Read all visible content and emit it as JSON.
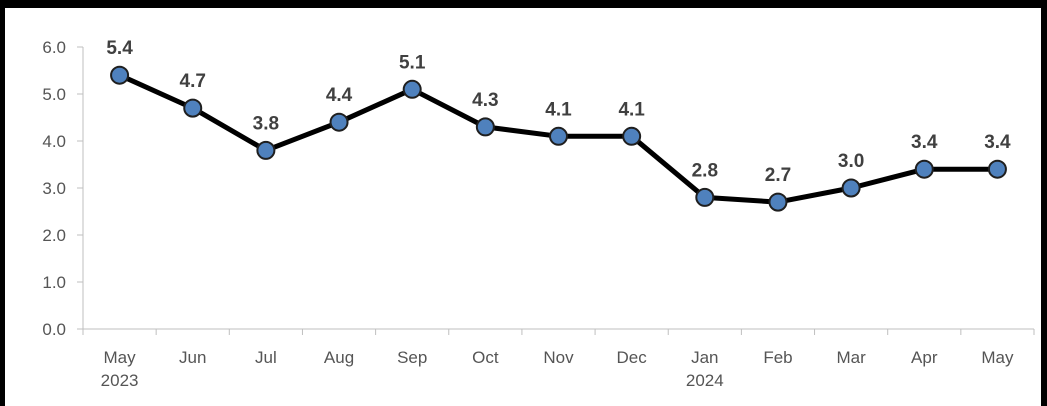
{
  "chart_data": {
    "type": "line",
    "title": "",
    "xlabel": "",
    "ylabel": "",
    "categories": [
      "May",
      "Jun",
      "Jul",
      "Aug",
      "Sep",
      "Oct",
      "Nov",
      "Dec",
      "Jan",
      "Feb",
      "Mar",
      "Apr",
      "May"
    ],
    "category_sublabels": [
      "2023",
      "",
      "",
      "",
      "",
      "",
      "",
      "",
      "2024",
      "",
      "",
      "",
      ""
    ],
    "series": [
      {
        "values": [
          5.4,
          4.7,
          3.8,
          4.4,
          5.1,
          4.3,
          4.1,
          4.1,
          2.8,
          2.7,
          3.0,
          3.4,
          3.4
        ],
        "data_labels": [
          "5.4",
          "4.7",
          "3.8",
          "4.4",
          "5.1",
          "4.3",
          "4.1",
          "4.1",
          "2.8",
          "2.7",
          "3.0",
          "3.4",
          "3.4"
        ]
      }
    ],
    "ylim": [
      0,
      6
    ],
    "yticks": [
      "0.0",
      "1.0",
      "2.0",
      "3.0",
      "4.0",
      "5.0",
      "6.0"
    ],
    "grid": false,
    "legend": "none",
    "colors": {
      "line": "#000000",
      "marker_fill": "#4f81bd",
      "marker_stroke": "#1f1f1f",
      "axis": "#bfbfbf",
      "tick_text": "#555555",
      "data_label_text": "#404040",
      "frame": "#000000"
    }
  }
}
